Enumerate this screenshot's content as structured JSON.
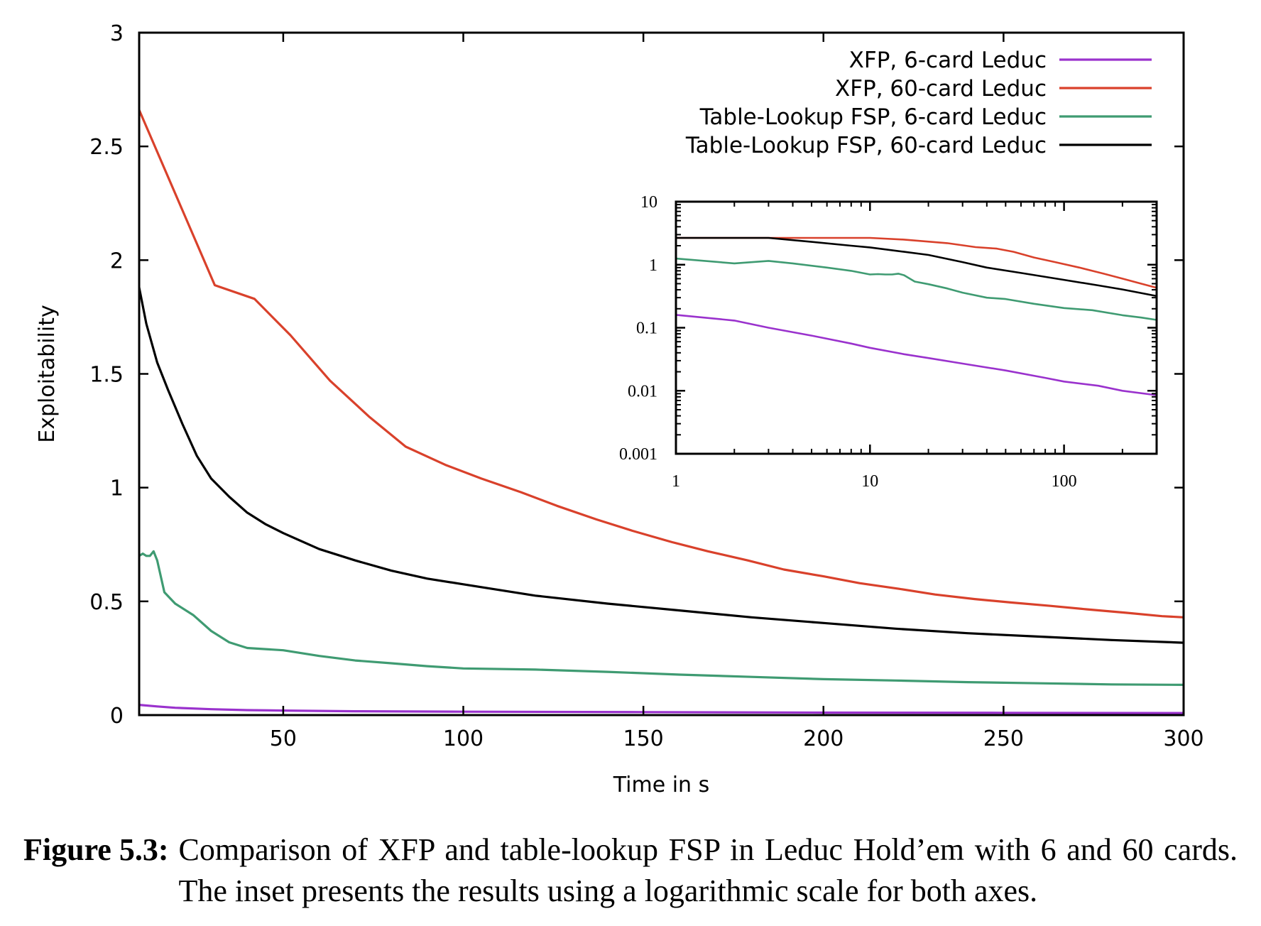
{
  "caption": {
    "label": "Figure 5.3:",
    "text": "Comparison of XFP and table-lookup FSP in Leduc Hold’em with 6 and 60 cards. The inset presents the results using a logarithmic scale for both axes."
  },
  "chart_data": [
    {
      "type": "line",
      "xlabel": "Time in s",
      "ylabel": "Exploitability",
      "xlim": [
        10,
        300
      ],
      "ylim": [
        0,
        3
      ],
      "xticks": [
        50,
        100,
        150,
        200,
        250,
        300
      ],
      "xtick_labels": [
        "50",
        "100",
        "150",
        "200",
        "250",
        "300"
      ],
      "yticks": [
        0,
        0.5,
        1,
        1.5,
        2,
        2.5,
        3
      ],
      "ytick_labels": [
        "0",
        "0.5",
        "1",
        "1.5",
        "2",
        "2.5",
        "3"
      ],
      "legend_position": "top-right",
      "grid": false,
      "series": [
        {
          "name": "XFP, 6-card Leduc",
          "color": "#9a32cd",
          "x": [
            10,
            15,
            20,
            30,
            40,
            50,
            70,
            100,
            150,
            200,
            250,
            300
          ],
          "y": [
            0.045,
            0.038,
            0.032,
            0.026,
            0.022,
            0.02,
            0.017,
            0.015,
            0.013,
            0.011,
            0.01,
            0.009
          ]
        },
        {
          "name": "XFP, 60-card Leduc",
          "color": "#d9412b",
          "x": [
            10,
            31,
            42,
            52,
            63,
            74,
            84,
            95,
            105,
            116,
            126,
            137,
            147,
            158,
            168,
            179,
            189,
            200,
            210,
            221,
            231,
            242,
            252,
            263,
            273,
            284,
            294,
            300
          ],
          "y": [
            2.66,
            1.89,
            1.83,
            1.67,
            1.47,
            1.31,
            1.18,
            1.1,
            1.04,
            0.98,
            0.92,
            0.86,
            0.81,
            0.76,
            0.72,
            0.68,
            0.64,
            0.61,
            0.58,
            0.555,
            0.53,
            0.51,
            0.495,
            0.48,
            0.465,
            0.45,
            0.435,
            0.43
          ]
        },
        {
          "name": "Table-Lookup FSP, 6-card Leduc",
          "color": "#3f9b72",
          "x": [
            10,
            11,
            12,
            13,
            14,
            15,
            17,
            20,
            25,
            30,
            35,
            40,
            50,
            60,
            70,
            80,
            90,
            100,
            120,
            140,
            160,
            180,
            200,
            220,
            240,
            260,
            280,
            300
          ],
          "y": [
            0.7,
            0.71,
            0.7,
            0.7,
            0.72,
            0.68,
            0.54,
            0.49,
            0.44,
            0.37,
            0.32,
            0.295,
            0.285,
            0.26,
            0.24,
            0.228,
            0.215,
            0.205,
            0.2,
            0.19,
            0.178,
            0.168,
            0.158,
            0.152,
            0.145,
            0.14,
            0.135,
            0.133
          ]
        },
        {
          "name": "Table-Lookup FSP, 60-card Leduc",
          "color": "#000000",
          "x": [
            10,
            12,
            15,
            18,
            22,
            26,
            30,
            35,
            40,
            45,
            50,
            60,
            70,
            80,
            90,
            100,
            110,
            120,
            140,
            160,
            180,
            200,
            220,
            240,
            260,
            280,
            300
          ],
          "y": [
            1.88,
            1.72,
            1.55,
            1.43,
            1.28,
            1.14,
            1.04,
            0.96,
            0.89,
            0.84,
            0.8,
            0.73,
            0.68,
            0.635,
            0.6,
            0.575,
            0.55,
            0.525,
            0.49,
            0.46,
            0.43,
            0.405,
            0.38,
            0.36,
            0.345,
            0.33,
            0.318
          ]
        }
      ]
    },
    {
      "type": "line",
      "xlog": true,
      "ylog": true,
      "xlim": [
        1,
        300
      ],
      "ylim": [
        0.001,
        10
      ],
      "xticks": [
        1,
        10,
        100
      ],
      "xtick_labels": [
        "1",
        "10",
        "100"
      ],
      "yticks": [
        0.001,
        0.01,
        0.1,
        1,
        10
      ],
      "ytick_labels": [
        "0.001",
        "0.01",
        "0.1",
        "1",
        "10"
      ],
      "grid": false,
      "series": [
        {
          "color": "#9a32cd",
          "x": [
            1,
            2,
            3,
            5,
            8,
            10,
            15,
            20,
            30,
            50,
            80,
            100,
            150,
            200,
            300
          ],
          "y": [
            0.16,
            0.13,
            0.1,
            0.075,
            0.056,
            0.048,
            0.038,
            0.033,
            0.027,
            0.021,
            0.016,
            0.014,
            0.012,
            0.01,
            0.0085
          ]
        },
        {
          "color": "#d9412b",
          "x": [
            1,
            3,
            10,
            15,
            25,
            35,
            45,
            55,
            70,
            90,
            120,
            160,
            200,
            250,
            300
          ],
          "y": [
            2.66,
            2.66,
            2.66,
            2.5,
            2.2,
            1.9,
            1.8,
            1.6,
            1.3,
            1.1,
            0.9,
            0.72,
            0.6,
            0.5,
            0.43
          ]
        },
        {
          "color": "#3f9b72",
          "x": [
            1,
            2,
            3,
            4,
            6,
            8,
            10,
            11,
            12,
            13,
            14,
            15,
            17,
            20,
            25,
            30,
            40,
            50,
            70,
            100,
            140,
            200,
            250,
            300
          ],
          "y": [
            1.25,
            1.05,
            1.15,
            1.05,
            0.9,
            0.8,
            0.7,
            0.71,
            0.7,
            0.7,
            0.72,
            0.68,
            0.54,
            0.49,
            0.42,
            0.36,
            0.3,
            0.285,
            0.24,
            0.205,
            0.19,
            0.158,
            0.145,
            0.133
          ]
        },
        {
          "color": "#000000",
          "x": [
            1,
            3,
            5,
            8,
            10,
            15,
            20,
            30,
            40,
            60,
            100,
            150,
            200,
            300
          ],
          "y": [
            2.66,
            2.66,
            2.3,
            2.0,
            1.88,
            1.6,
            1.43,
            1.1,
            0.9,
            0.74,
            0.575,
            0.47,
            0.405,
            0.318
          ]
        }
      ]
    }
  ]
}
